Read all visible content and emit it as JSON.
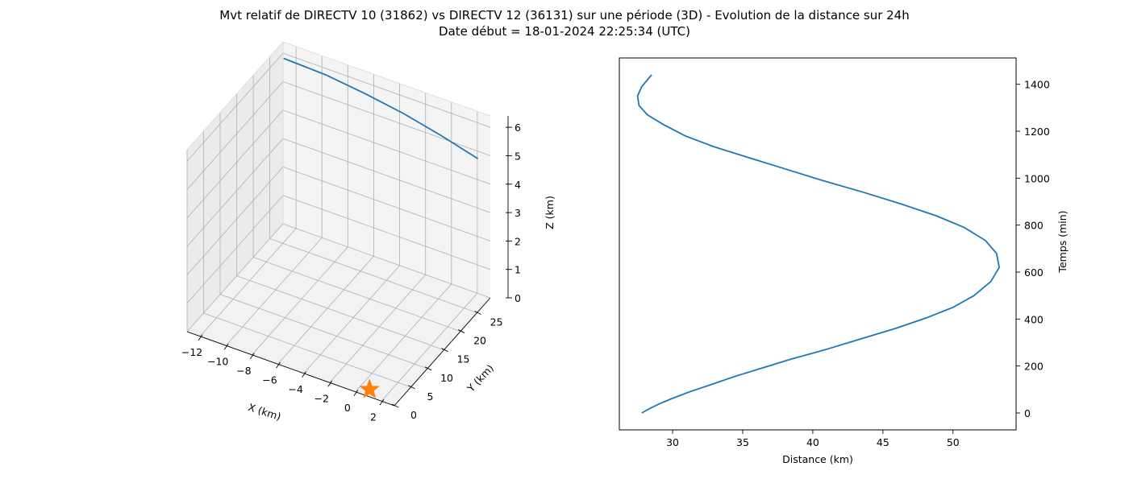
{
  "title": {
    "line1": "Mvt relatif de DIRECTV 10 (31862) vs DIRECTV 12 (36131) sur une période (3D) - Evolution de la distance sur 24h",
    "line2": "Date début = 18-01-2024 22:25:34 (UTC)"
  },
  "colors": {
    "series": "#1f77b4",
    "marker": "#ff7f0e",
    "pane": "#f2f2f2",
    "grid": "#b0b0b0"
  },
  "chart_data": [
    {
      "type": "line3d",
      "xlabel": "X (km)",
      "ylabel": "Y (km)",
      "zlabel": "Z (km)",
      "xlim": [
        -13,
        3
      ],
      "ylim": [
        0,
        29
      ],
      "zlim": [
        0,
        6.4
      ],
      "x_ticks": [
        -12,
        -10,
        -8,
        -6,
        -4,
        -2,
        0,
        2
      ],
      "y_ticks": [
        0,
        5,
        10,
        15,
        20,
        25
      ],
      "z_ticks": [
        0,
        1,
        2,
        3,
        4,
        5,
        6
      ],
      "grid": true,
      "series": [
        {
          "x": [
            -12.7,
            -9.5,
            -6.4,
            -3.4,
            -0.4,
            2.5
          ],
          "y": [
            28.0,
            28.0,
            27.9,
            27.8,
            27.5,
            27.2
          ],
          "z": [
            6.0,
            5.95,
            5.8,
            5.6,
            5.35,
            5.05
          ]
        }
      ],
      "markers": [
        {
          "x": 0.7,
          "y": 1.5,
          "z": 0.0,
          "symbol": "star"
        }
      ]
    },
    {
      "type": "line",
      "xlabel": "Distance (km)",
      "ylabel": "Temps (min)",
      "xlim": [
        26.2,
        54.5
      ],
      "ylim": [
        -72,
        1512
      ],
      "x_ticks": [
        30,
        35,
        40,
        45,
        50
      ],
      "y_ticks": [
        0,
        200,
        400,
        600,
        800,
        1000,
        1200,
        1400
      ],
      "grid": false,
      "series": [
        {
          "x": [
            27.8,
            28.4,
            29.1,
            29.9,
            31.2,
            32.7,
            34.4,
            36.3,
            38.5,
            40.9,
            43.4,
            45.9,
            48.1,
            50.0,
            51.5,
            52.7,
            53.3,
            53.1,
            52.3,
            50.8,
            48.8,
            46.3,
            43.6,
            40.7,
            38.0,
            35.3,
            32.9,
            30.9,
            29.3,
            28.2,
            27.6,
            27.5,
            27.8,
            28.5
          ],
          "y": [
            0,
            20,
            40,
            60,
            90,
            120,
            155,
            190,
            230,
            270,
            315,
            360,
            405,
            450,
            500,
            560,
            620,
            680,
            735,
            790,
            840,
            890,
            940,
            990,
            1040,
            1090,
            1135,
            1180,
            1230,
            1270,
            1310,
            1350,
            1390,
            1440
          ]
        }
      ]
    }
  ]
}
